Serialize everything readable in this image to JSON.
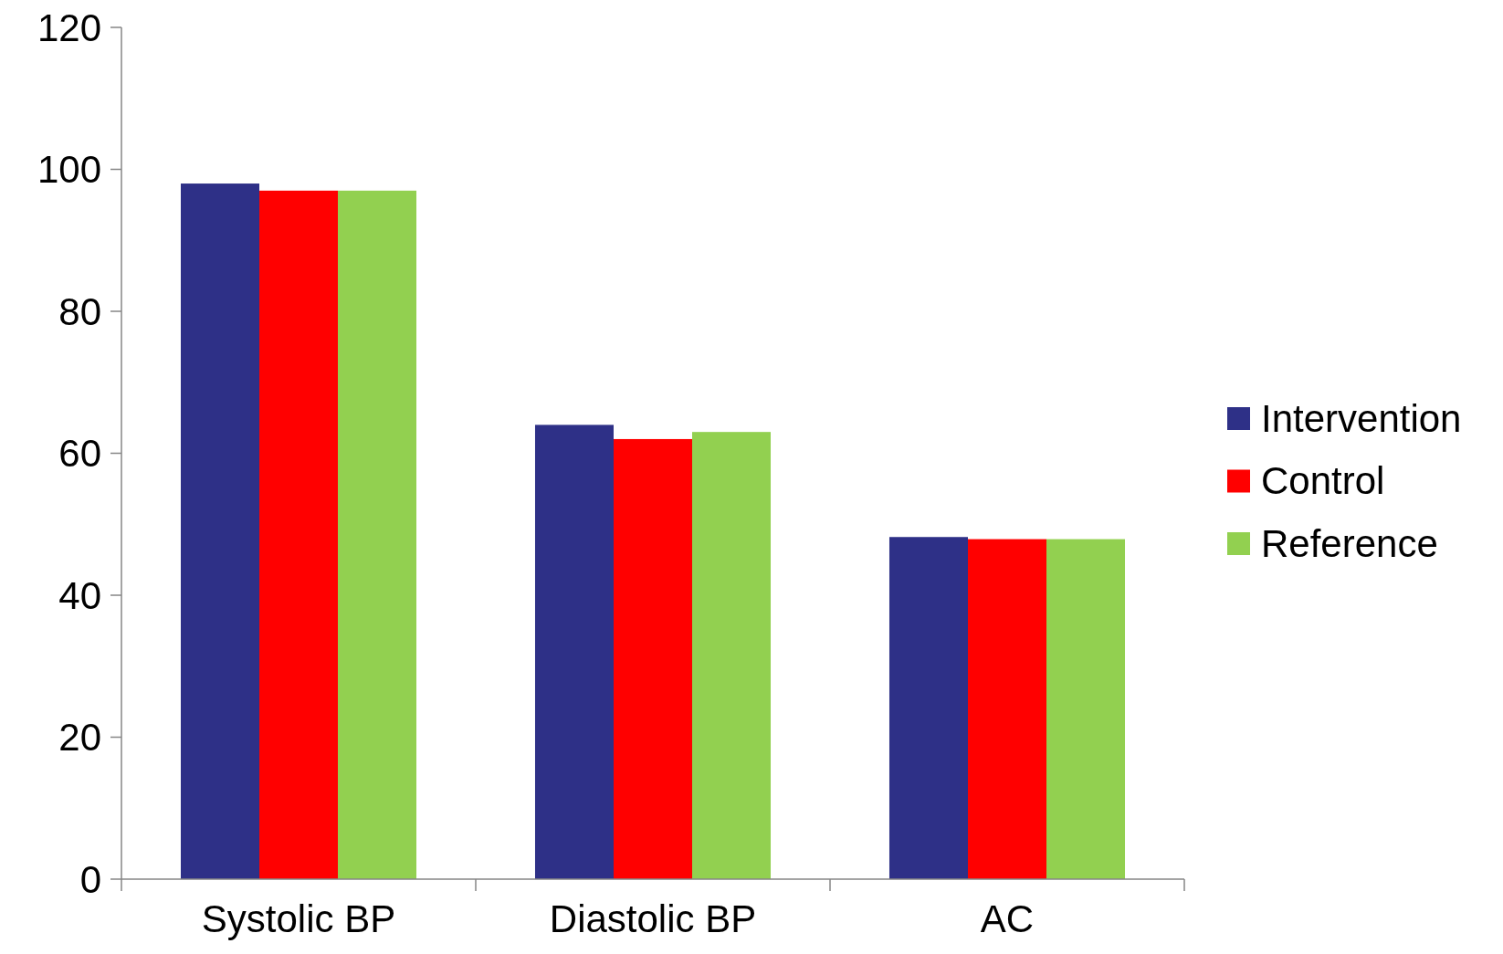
{
  "chart_data": {
    "type": "bar",
    "categories": [
      "Systolic BP",
      "Diastolic BP",
      "AC"
    ],
    "series": [
      {
        "name": "Intervention",
        "color": "#2e3087",
        "values": [
          98,
          64,
          48.2
        ]
      },
      {
        "name": "Control",
        "color": "#ff0000",
        "values": [
          97,
          62,
          47.9
        ]
      },
      {
        "name": "Reference",
        "color": "#92d050",
        "values": [
          97,
          63,
          47.9
        ]
      }
    ],
    "ylim": [
      0,
      120
    ],
    "yticks": [
      0,
      20,
      40,
      60,
      80,
      100,
      120
    ],
    "grid": false,
    "legend": "right"
  }
}
